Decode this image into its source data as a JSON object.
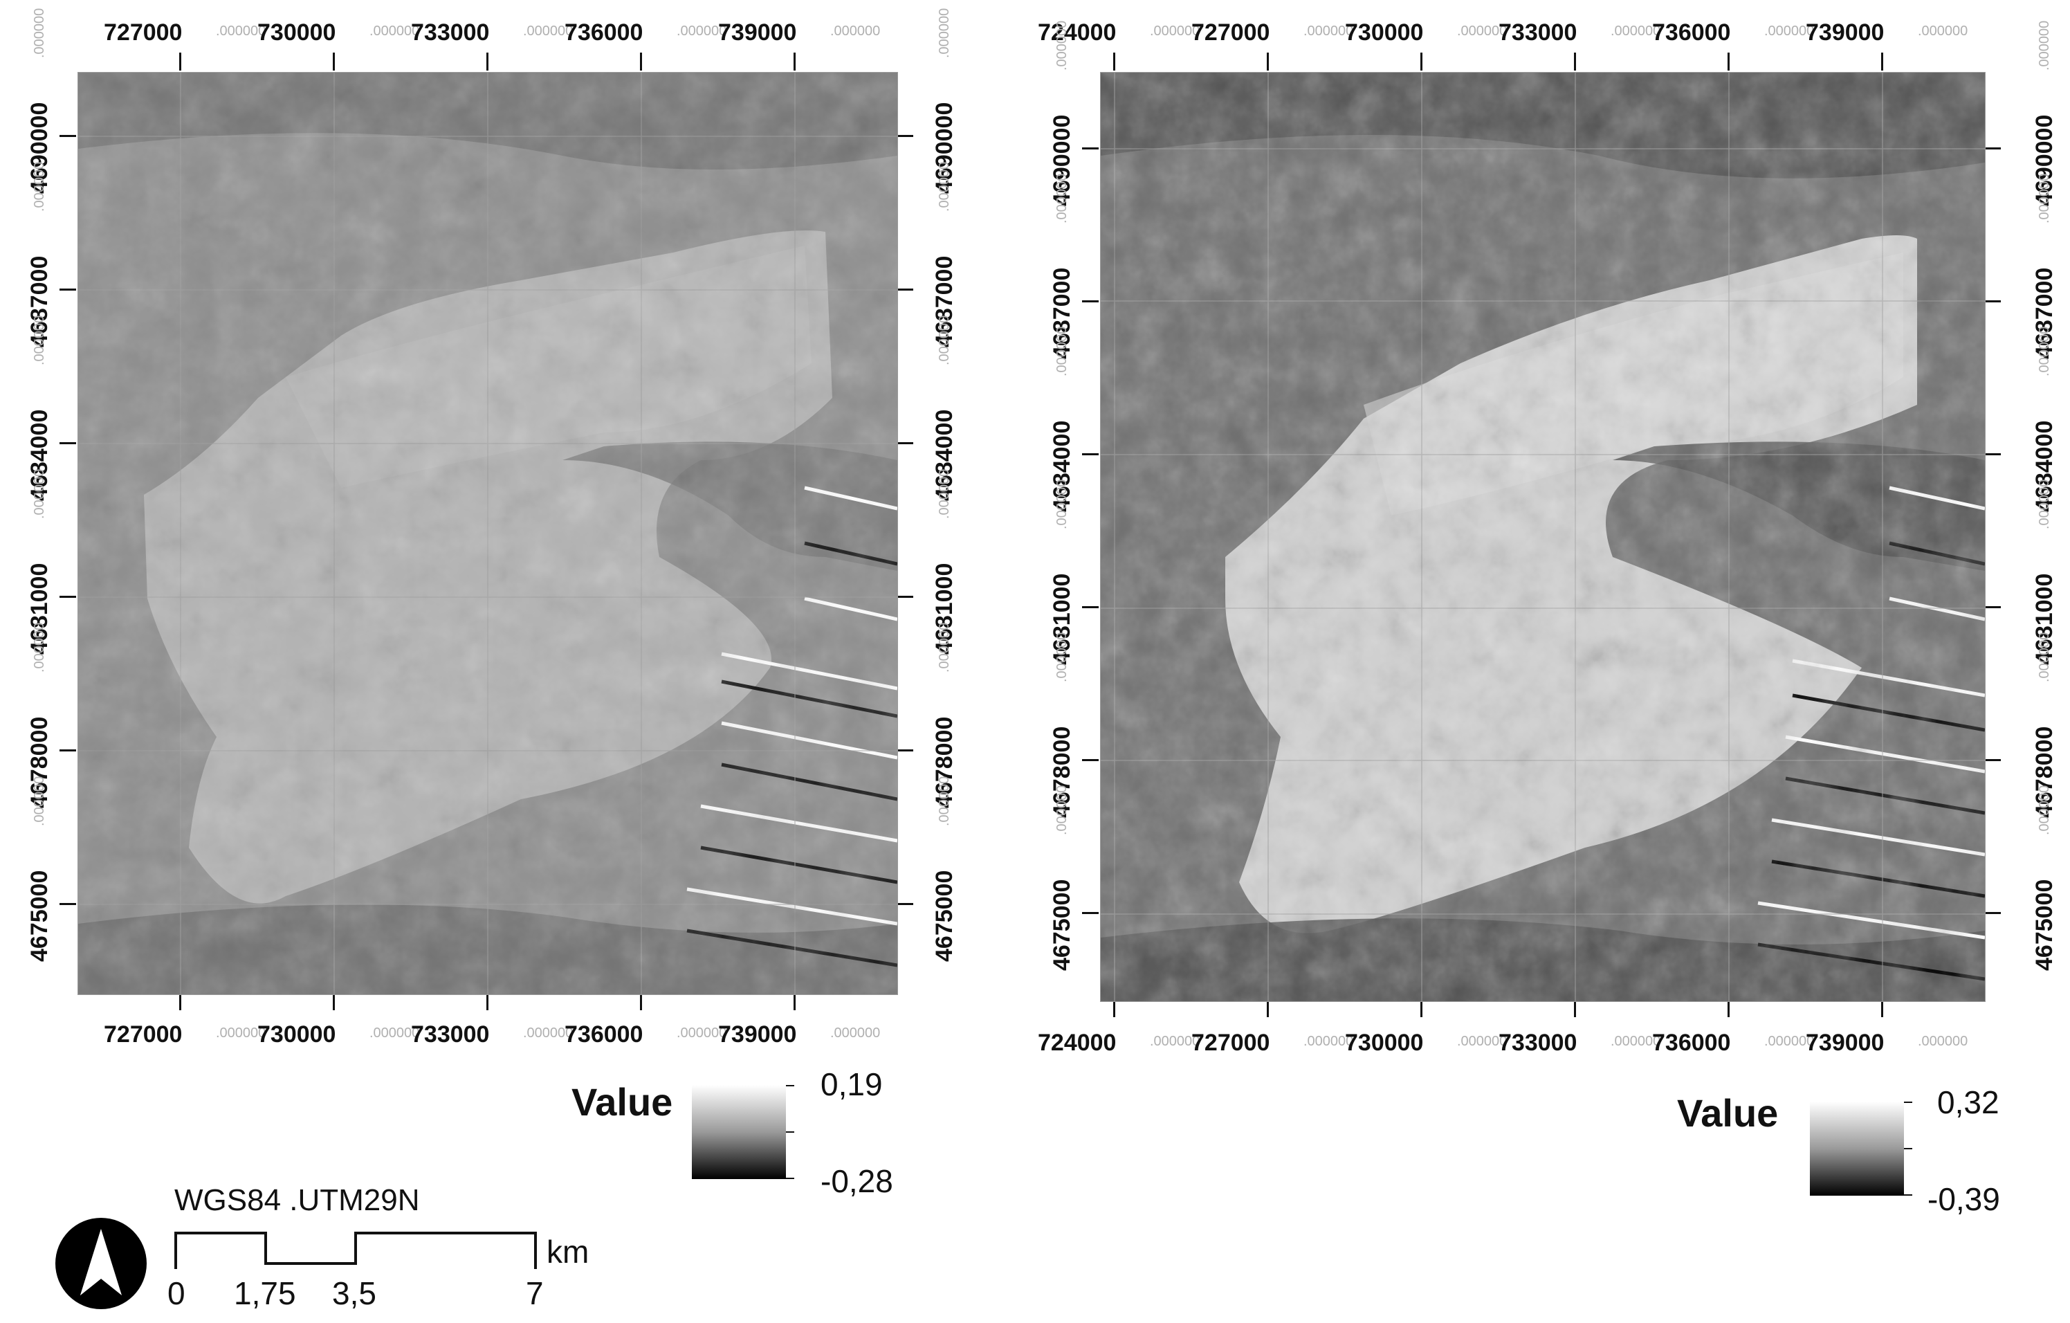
{
  "maps": [
    {
      "id": "left",
      "x_ticks_top": [
        "727000",
        "730000",
        "733000",
        "736000",
        "739000"
      ],
      "x_ticks_bottom": [
        "727000",
        "730000",
        "733000",
        "736000",
        "739000"
      ],
      "y_ticks": [
        "4690000",
        "4687000",
        "4684000",
        "4681000",
        "4678000",
        "4675000"
      ],
      "tick_decimal": ".000000",
      "legend": {
        "title": "Value",
        "max": "0,19",
        "min": "-0,28"
      },
      "brightness": "moderate"
    },
    {
      "id": "right",
      "x_ticks_top": [
        "724000",
        "727000",
        "730000",
        "733000",
        "736000",
        "739000"
      ],
      "x_ticks_bottom": [
        "724000",
        "727000",
        "730000",
        "733000",
        "736000",
        "739000"
      ],
      "y_ticks": [
        "4690000",
        "4687000",
        "4684000",
        "4681000",
        "4678000",
        "4675000"
      ],
      "tick_decimal": ".000000",
      "legend": {
        "title": "Value",
        "max": "0,32",
        "min": "-0,39"
      },
      "brightness": "high-contrast"
    }
  ],
  "crs": "WGS84 .UTM29N",
  "scale_bar": {
    "labels": [
      "0",
      "1,75",
      "3,5",
      "7"
    ],
    "unit": "km"
  },
  "north_arrow": "north-arrow-icon",
  "colors": {
    "ramp_high": "#ffffff",
    "ramp_low": "#000000"
  }
}
